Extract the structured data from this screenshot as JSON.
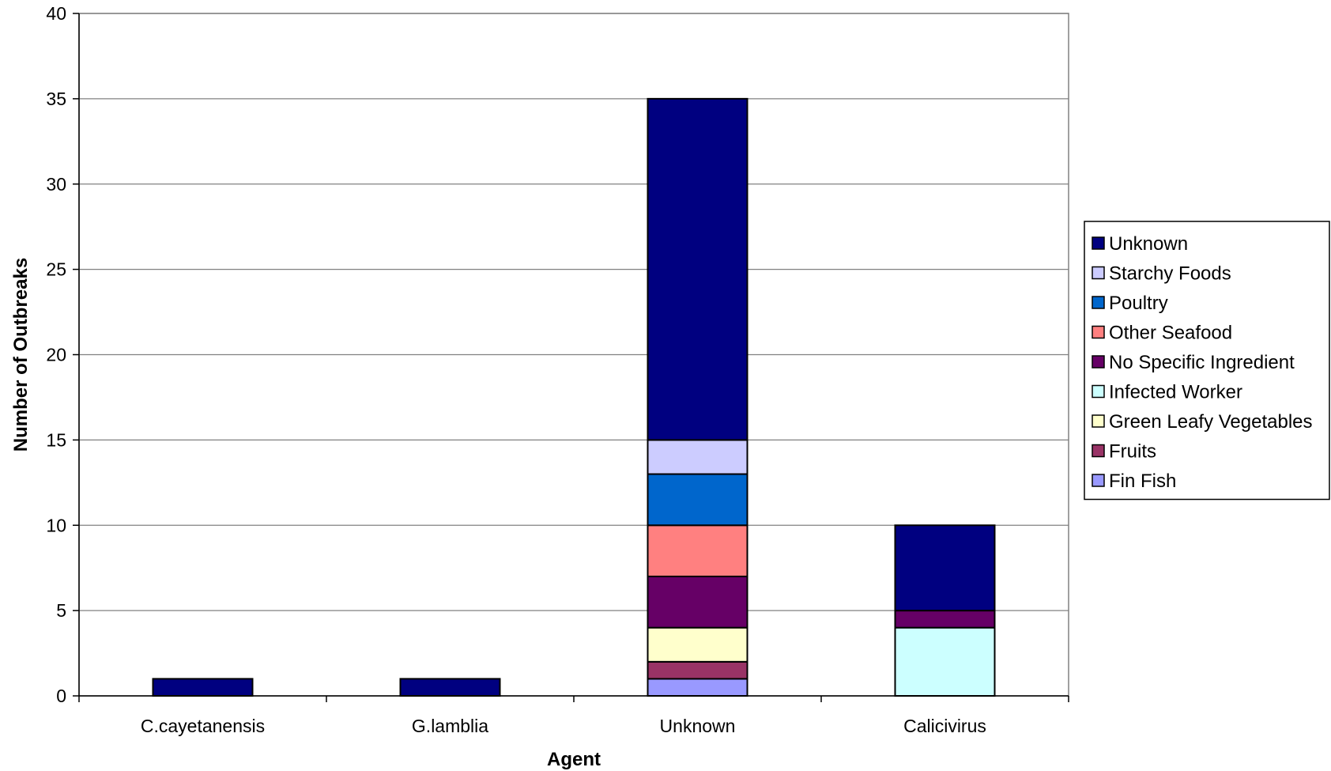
{
  "chart_data": {
    "type": "bar",
    "stacked": true,
    "title": "",
    "xlabel": "Agent",
    "ylabel": "Number of Outbreaks",
    "ylim": [
      0,
      40
    ],
    "yticks": [
      0,
      5,
      10,
      15,
      20,
      25,
      30,
      35,
      40
    ],
    "ytick_labels": [
      "0",
      "5",
      "10",
      "15",
      "20",
      "25",
      "30",
      "35",
      "40"
    ],
    "grid": true,
    "legend_position": "right",
    "categories": [
      "C.cayetanensis",
      "G.lamblia",
      "Unknown",
      "Calicivirus"
    ],
    "series": [
      {
        "name": "Fin Fish",
        "color": "#9999FF",
        "values": [
          0,
          0,
          1,
          0
        ]
      },
      {
        "name": "Fruits",
        "color": "#993366",
        "values": [
          0,
          0,
          1,
          0
        ]
      },
      {
        "name": "Green Leafy Vegetables",
        "color": "#FFFFCC",
        "values": [
          0,
          0,
          2,
          0
        ]
      },
      {
        "name": "Infected Worker",
        "color": "#CCFFFF",
        "values": [
          0,
          0,
          0,
          4
        ]
      },
      {
        "name": "No Specific Ingredient",
        "color": "#660066",
        "values": [
          0,
          0,
          3,
          1
        ]
      },
      {
        "name": "Other Seafood",
        "color": "#FF8080",
        "values": [
          0,
          0,
          3,
          0
        ]
      },
      {
        "name": "Poultry",
        "color": "#0066CC",
        "values": [
          0,
          0,
          3,
          0
        ]
      },
      {
        "name": "Starchy Foods",
        "color": "#CCCCFF",
        "values": [
          0,
          0,
          2,
          0
        ]
      },
      {
        "name": "Unknown",
        "color": "#000080",
        "values": [
          1,
          1,
          20,
          5
        ]
      }
    ]
  }
}
